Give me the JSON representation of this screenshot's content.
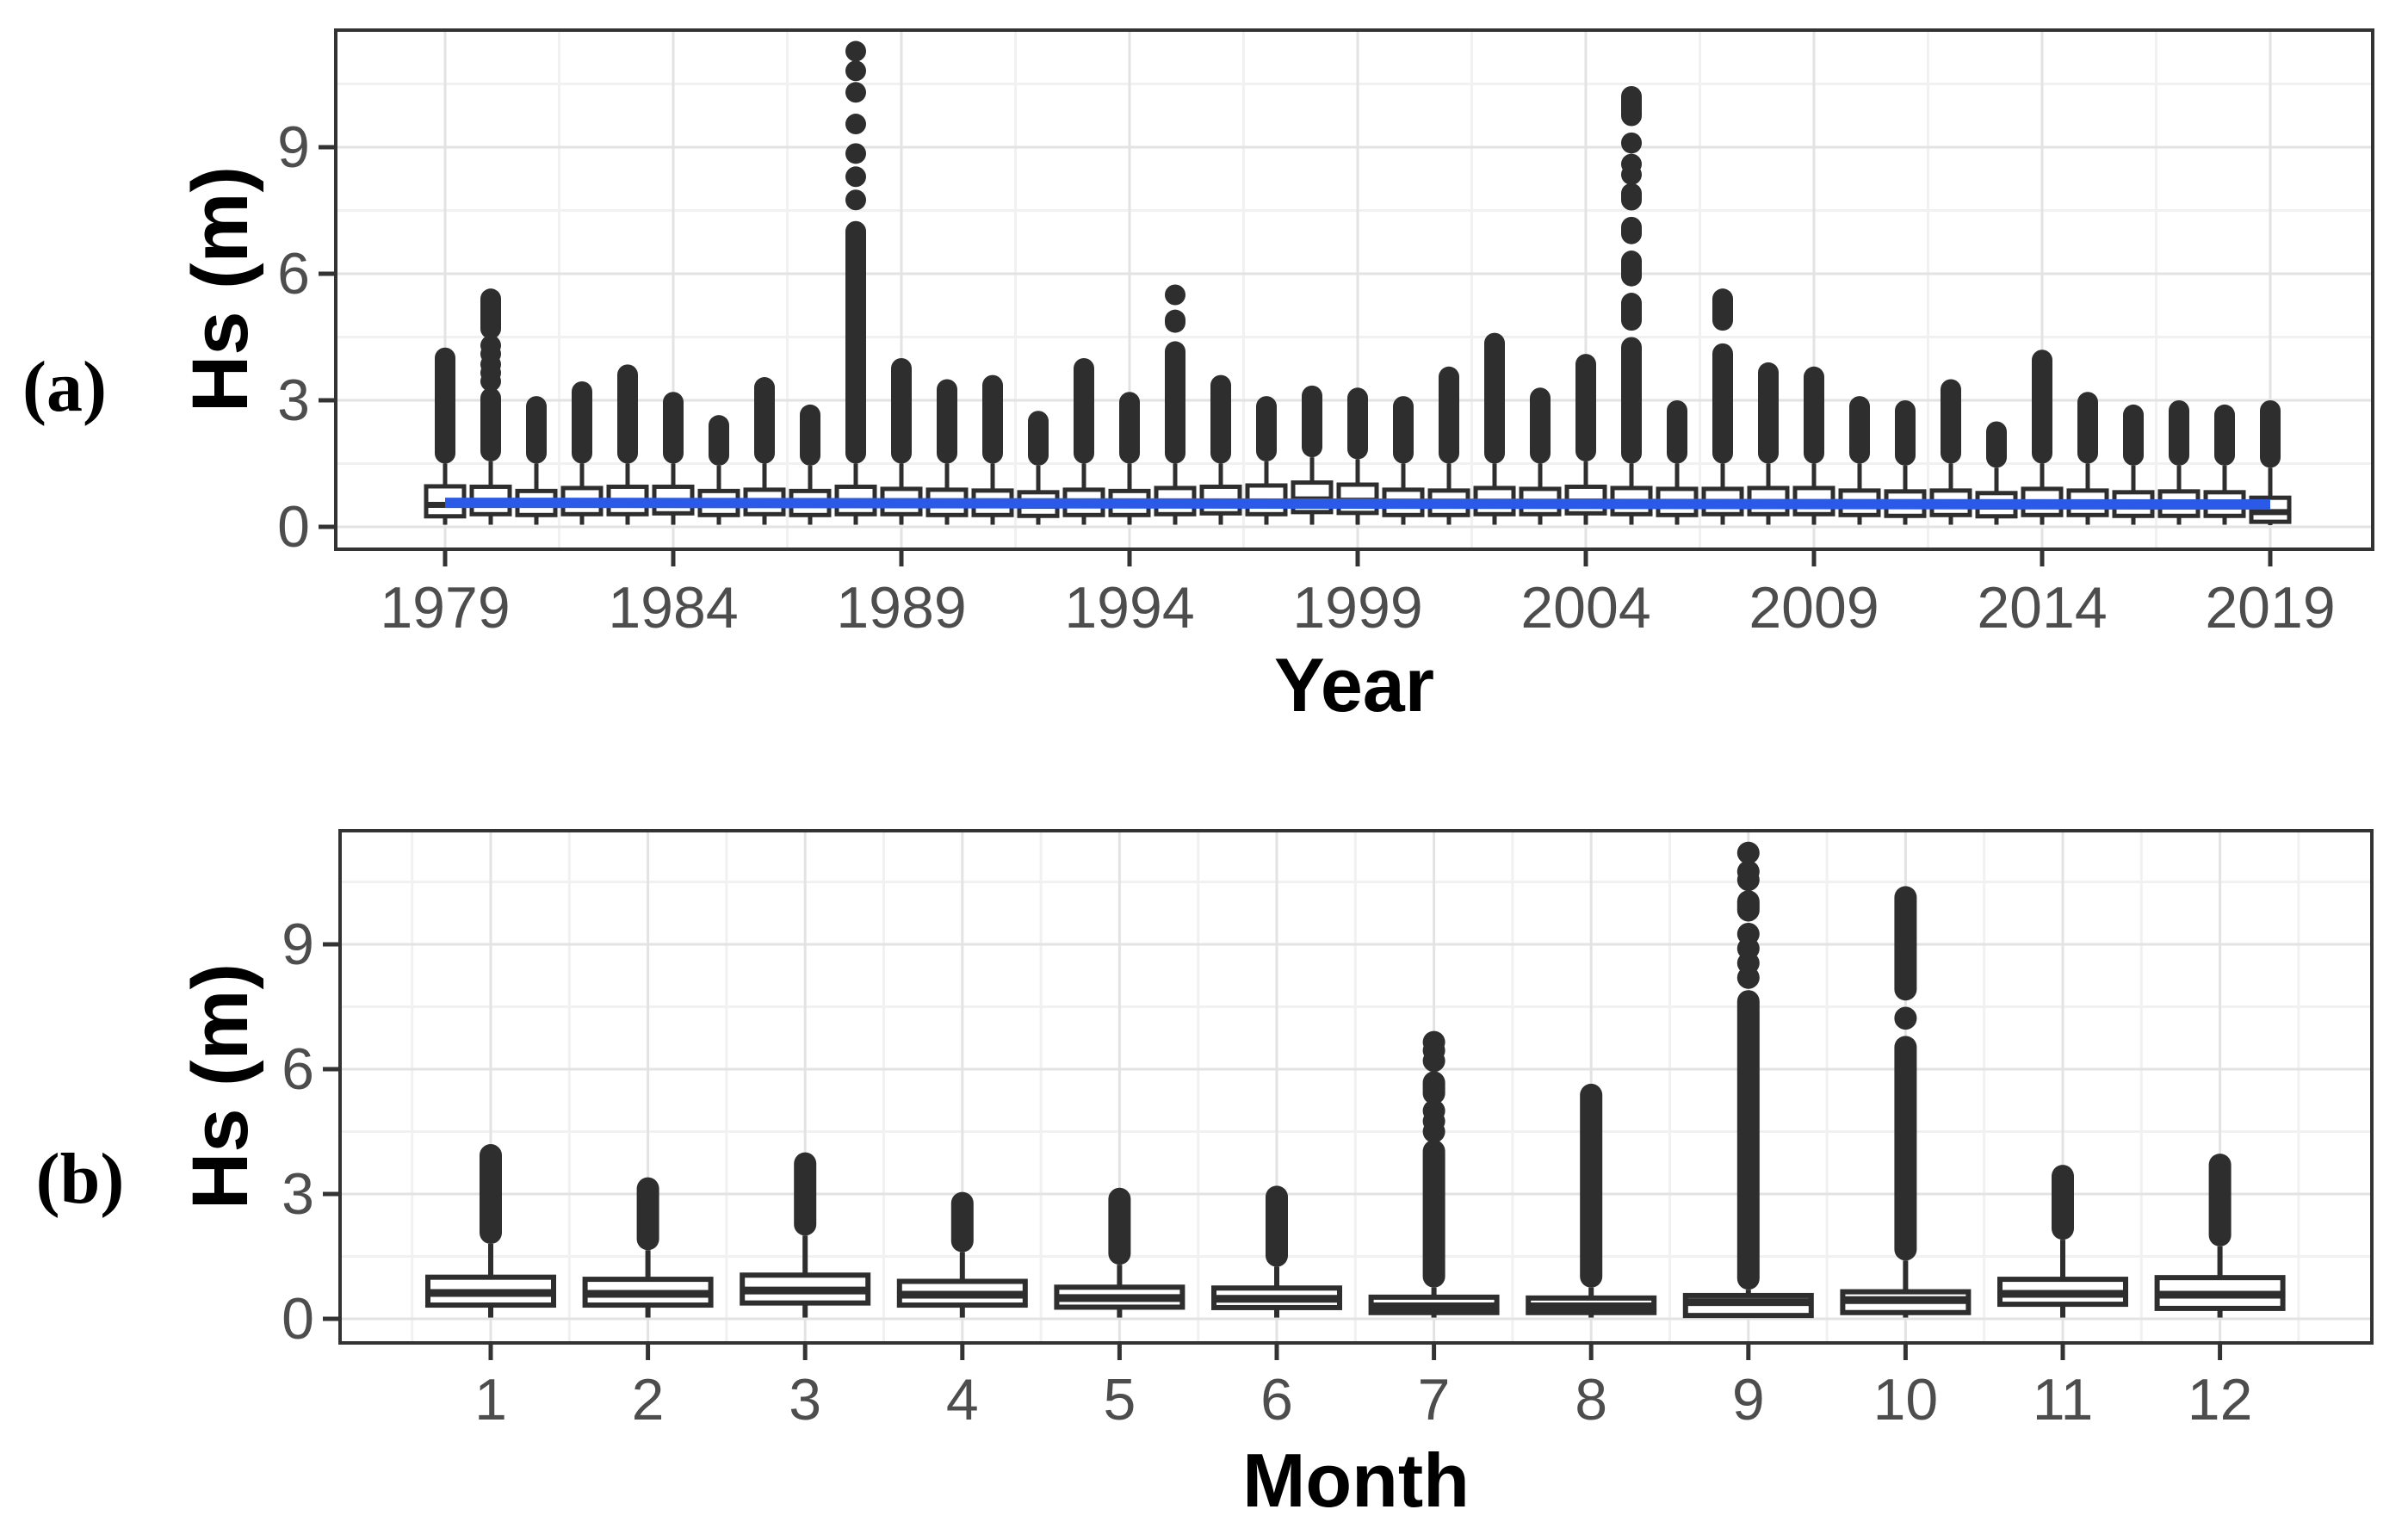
{
  "figure": {
    "background": "#ffffff"
  },
  "colors": {
    "box_stroke": "#2e2e2e",
    "box_fill": "#ffffff",
    "outlier": "#2e2e2e",
    "trend_blue": "#2b59e8",
    "grid_major": "#e3e3e3",
    "grid_minor": "#f1f1f1",
    "panel_border": "#333333",
    "tick_mark": "#333333",
    "tick_label": "#4d4d4d",
    "axis_title": "#000000"
  },
  "chart_data": [
    {
      "type": "boxplot",
      "panel_tag": "(a)",
      "xlabel": "Year",
      "ylabel": "Hs (m)",
      "x_ticks": [
        1979,
        1984,
        1989,
        1994,
        1999,
        2004,
        2009,
        2014,
        2019
      ],
      "y_ticks": [
        0,
        3,
        6,
        9
      ],
      "ylim": [
        -0.55,
        11.8
      ],
      "xlim": [
        1976.6,
        2021.3
      ],
      "grid": true,
      "legend": "none",
      "trend_line": {
        "x1": 1979,
        "v1": 0.57,
        "x2": 2019,
        "v2": 0.53,
        "color": "#2b59e8",
        "width": 12
      },
      "boxes": [
        {
          "x": 1979,
          "q1": 0.25,
          "med": 0.52,
          "q3": 0.96,
          "lo": 0.05,
          "seg": [
            [
              1.5,
              4.25
            ]
          ],
          "pts": []
        },
        {
          "x": 1980,
          "q1": 0.3,
          "med": 0.6,
          "q3": 0.95,
          "lo": 0.05,
          "seg": [
            [
              1.55,
              3.3
            ],
            [
              4.45,
              5.65
            ]
          ],
          "pts": [
            3.45,
            3.65,
            3.85,
            4.1,
            4.3
          ]
        },
        {
          "x": 1981,
          "q1": 0.28,
          "med": 0.52,
          "q3": 0.85,
          "lo": 0.05,
          "seg": [
            [
              1.5,
              3.1
            ]
          ],
          "pts": []
        },
        {
          "x": 1982,
          "q1": 0.3,
          "med": 0.58,
          "q3": 0.92,
          "lo": 0.05,
          "seg": [
            [
              1.5,
              3.45
            ]
          ],
          "pts": []
        },
        {
          "x": 1983,
          "q1": 0.3,
          "med": 0.6,
          "q3": 0.95,
          "lo": 0.05,
          "seg": [
            [
              1.5,
              3.85
            ]
          ],
          "pts": []
        },
        {
          "x": 1984,
          "q1": 0.32,
          "med": 0.6,
          "q3": 0.95,
          "lo": 0.05,
          "seg": [
            [
              1.5,
              3.2
            ]
          ],
          "pts": []
        },
        {
          "x": 1985,
          "q1": 0.28,
          "med": 0.52,
          "q3": 0.85,
          "lo": 0.05,
          "seg": [
            [
              1.45,
              2.65
            ]
          ],
          "pts": []
        },
        {
          "x": 1986,
          "q1": 0.3,
          "med": 0.55,
          "q3": 0.88,
          "lo": 0.05,
          "seg": [
            [
              1.5,
              3.55
            ]
          ],
          "pts": []
        },
        {
          "x": 1987,
          "q1": 0.28,
          "med": 0.52,
          "q3": 0.85,
          "lo": 0.05,
          "seg": [
            [
              1.45,
              2.9
            ]
          ],
          "pts": []
        },
        {
          "x": 1988,
          "q1": 0.3,
          "med": 0.58,
          "q3": 0.95,
          "lo": 0.05,
          "seg": [
            [
              1.5,
              7.25
            ],
            [
              10.1,
              10.5
            ],
            [
              10.62,
              11.0
            ],
            [
              11.1,
              11.45
            ]
          ],
          "pts": [
            7.75,
            8.3,
            8.85,
            9.55
          ]
        },
        {
          "x": 1989,
          "q1": 0.3,
          "med": 0.55,
          "q3": 0.9,
          "lo": 0.05,
          "seg": [
            [
              1.5,
              4.0
            ]
          ],
          "pts": []
        },
        {
          "x": 1990,
          "q1": 0.28,
          "med": 0.55,
          "q3": 0.88,
          "lo": 0.05,
          "seg": [
            [
              1.5,
              3.5
            ]
          ],
          "pts": []
        },
        {
          "x": 1991,
          "q1": 0.28,
          "med": 0.52,
          "q3": 0.86,
          "lo": 0.05,
          "seg": [
            [
              1.5,
              3.6
            ]
          ],
          "pts": []
        },
        {
          "x": 1992,
          "q1": 0.26,
          "med": 0.5,
          "q3": 0.82,
          "lo": 0.05,
          "seg": [
            [
              1.45,
              2.75
            ]
          ],
          "pts": []
        },
        {
          "x": 1993,
          "q1": 0.28,
          "med": 0.55,
          "q3": 0.88,
          "lo": 0.05,
          "seg": [
            [
              1.5,
              4.0
            ]
          ],
          "pts": []
        },
        {
          "x": 1994,
          "q1": 0.28,
          "med": 0.52,
          "q3": 0.85,
          "lo": 0.05,
          "seg": [
            [
              1.5,
              3.2
            ]
          ],
          "pts": []
        },
        {
          "x": 1995,
          "q1": 0.3,
          "med": 0.58,
          "q3": 0.92,
          "lo": 0.05,
          "seg": [
            [
              1.5,
              4.4
            ],
            [
              4.6,
              5.15
            ],
            [
              5.3,
              5.7
            ]
          ],
          "pts": []
        },
        {
          "x": 1996,
          "q1": 0.32,
          "med": 0.6,
          "q3": 0.95,
          "lo": 0.05,
          "seg": [
            [
              1.5,
              3.6
            ]
          ],
          "pts": []
        },
        {
          "x": 1997,
          "q1": 0.3,
          "med": 0.58,
          "q3": 0.98,
          "lo": 0.05,
          "seg": [
            [
              1.55,
              3.1
            ]
          ],
          "pts": []
        },
        {
          "x": 1998,
          "q1": 0.35,
          "med": 0.65,
          "q3": 1.05,
          "lo": 0.05,
          "seg": [
            [
              1.65,
              3.35
            ]
          ],
          "pts": []
        },
        {
          "x": 1999,
          "q1": 0.33,
          "med": 0.62,
          "q3": 1.0,
          "lo": 0.05,
          "seg": [
            [
              1.6,
              3.3
            ]
          ],
          "pts": []
        },
        {
          "x": 2000,
          "q1": 0.28,
          "med": 0.55,
          "q3": 0.88,
          "lo": 0.05,
          "seg": [
            [
              1.5,
              3.1
            ]
          ],
          "pts": []
        },
        {
          "x": 2001,
          "q1": 0.28,
          "med": 0.52,
          "q3": 0.86,
          "lo": 0.05,
          "seg": [
            [
              1.5,
              3.8
            ]
          ],
          "pts": []
        },
        {
          "x": 2002,
          "q1": 0.3,
          "med": 0.58,
          "q3": 0.92,
          "lo": 0.05,
          "seg": [
            [
              1.5,
              4.6
            ]
          ],
          "pts": []
        },
        {
          "x": 2003,
          "q1": 0.3,
          "med": 0.55,
          "q3": 0.9,
          "lo": 0.05,
          "seg": [
            [
              1.5,
              3.3
            ]
          ],
          "pts": []
        },
        {
          "x": 2004,
          "q1": 0.32,
          "med": 0.6,
          "q3": 0.95,
          "lo": 0.05,
          "seg": [
            [
              1.55,
              4.1
            ]
          ],
          "pts": []
        },
        {
          "x": 2005,
          "q1": 0.3,
          "med": 0.58,
          "q3": 0.92,
          "lo": 0.05,
          "seg": [
            [
              1.5,
              4.5
            ],
            [
              4.65,
              5.55
            ],
            [
              5.7,
              6.55
            ],
            [
              6.7,
              7.35
            ],
            [
              7.5,
              8.15
            ],
            [
              8.85,
              9.35
            ],
            [
              9.5,
              10.45
            ]
          ],
          "pts": [
            8.35,
            8.6
          ]
        },
        {
          "x": 2006,
          "q1": 0.28,
          "med": 0.55,
          "q3": 0.9,
          "lo": 0.05,
          "seg": [
            [
              1.5,
              3.0
            ]
          ],
          "pts": []
        },
        {
          "x": 2007,
          "q1": 0.3,
          "med": 0.55,
          "q3": 0.9,
          "lo": 0.05,
          "seg": [
            [
              1.5,
              4.35
            ],
            [
              4.65,
              5.65
            ]
          ],
          "pts": []
        },
        {
          "x": 2008,
          "q1": 0.3,
          "med": 0.55,
          "q3": 0.92,
          "lo": 0.05,
          "seg": [
            [
              1.5,
              3.9
            ]
          ],
          "pts": []
        },
        {
          "x": 2009,
          "q1": 0.3,
          "med": 0.58,
          "q3": 0.92,
          "lo": 0.05,
          "seg": [
            [
              1.5,
              3.8
            ]
          ],
          "pts": []
        },
        {
          "x": 2010,
          "q1": 0.28,
          "med": 0.52,
          "q3": 0.86,
          "lo": 0.05,
          "seg": [
            [
              1.5,
              3.1
            ]
          ],
          "pts": []
        },
        {
          "x": 2011,
          "q1": 0.26,
          "med": 0.5,
          "q3": 0.84,
          "lo": 0.05,
          "seg": [
            [
              1.45,
              3.0
            ]
          ],
          "pts": []
        },
        {
          "x": 2012,
          "q1": 0.28,
          "med": 0.52,
          "q3": 0.86,
          "lo": 0.05,
          "seg": [
            [
              1.5,
              3.5
            ]
          ],
          "pts": []
        },
        {
          "x": 2013,
          "q1": 0.25,
          "med": 0.48,
          "q3": 0.8,
          "lo": 0.05,
          "seg": [
            [
              1.4,
              2.5
            ]
          ],
          "pts": []
        },
        {
          "x": 2014,
          "q1": 0.28,
          "med": 0.55,
          "q3": 0.9,
          "lo": 0.05,
          "seg": [
            [
              1.5,
              4.2
            ]
          ],
          "pts": []
        },
        {
          "x": 2015,
          "q1": 0.28,
          "med": 0.52,
          "q3": 0.86,
          "lo": 0.05,
          "seg": [
            [
              1.5,
              3.2
            ]
          ],
          "pts": []
        },
        {
          "x": 2016,
          "q1": 0.26,
          "med": 0.5,
          "q3": 0.82,
          "lo": 0.05,
          "seg": [
            [
              1.45,
              2.9
            ]
          ],
          "pts": []
        },
        {
          "x": 2017,
          "q1": 0.26,
          "med": 0.5,
          "q3": 0.84,
          "lo": 0.05,
          "seg": [
            [
              1.45,
              3.0
            ]
          ],
          "pts": []
        },
        {
          "x": 2018,
          "q1": 0.26,
          "med": 0.5,
          "q3": 0.82,
          "lo": 0.05,
          "seg": [
            [
              1.45,
              2.9
            ]
          ],
          "pts": []
        },
        {
          "x": 2019,
          "q1": 0.12,
          "med": 0.35,
          "q3": 0.69,
          "lo": 0.04,
          "seg": [
            [
              1.4,
              3.0
            ]
          ],
          "pts": []
        }
      ]
    },
    {
      "type": "boxplot",
      "panel_tag": "(b)",
      "xlabel": "Month",
      "ylabel": "Hs (m)",
      "x_ticks": [
        1,
        2,
        3,
        4,
        5,
        6,
        7,
        8,
        9,
        10,
        11,
        12
      ],
      "y_ticks": [
        0,
        3,
        6,
        9
      ],
      "ylim": [
        -0.58,
        11.74
      ],
      "xlim": [
        0.4,
        12.6
      ],
      "grid": true,
      "legend": "none",
      "trend_line": null,
      "boxes": [
        {
          "x": 1,
          "q1": 0.33,
          "med": 0.62,
          "q3": 1.0,
          "lo": 0.03,
          "seg": [
            [
              1.8,
              4.2
            ]
          ],
          "pts": []
        },
        {
          "x": 2,
          "q1": 0.33,
          "med": 0.6,
          "q3": 0.95,
          "lo": 0.03,
          "seg": [
            [
              1.65,
              3.4
            ]
          ],
          "pts": []
        },
        {
          "x": 3,
          "q1": 0.38,
          "med": 0.68,
          "q3": 1.05,
          "lo": 0.03,
          "seg": [
            [
              2.0,
              4.0
            ]
          ],
          "pts": []
        },
        {
          "x": 4,
          "q1": 0.33,
          "med": 0.58,
          "q3": 0.9,
          "lo": 0.03,
          "seg": [
            [
              1.6,
              3.05
            ]
          ],
          "pts": []
        },
        {
          "x": 5,
          "q1": 0.28,
          "med": 0.5,
          "q3": 0.76,
          "lo": 0.03,
          "seg": [
            [
              1.3,
              3.15
            ]
          ],
          "pts": []
        },
        {
          "x": 6,
          "q1": 0.27,
          "med": 0.48,
          "q3": 0.74,
          "lo": 0.03,
          "seg": [
            [
              1.25,
              3.2
            ]
          ],
          "pts": []
        },
        {
          "x": 7,
          "q1": 0.15,
          "med": 0.3,
          "q3": 0.52,
          "lo": 0.03,
          "seg": [
            [
              0.75,
              4.3
            ],
            [
              5.15,
              5.95
            ]
          ],
          "pts": [
            4.5,
            4.75,
            5.0,
            6.2,
            6.45,
            6.65
          ]
        },
        {
          "x": 8,
          "q1": 0.15,
          "med": 0.3,
          "q3": 0.5,
          "lo": 0.03,
          "seg": [
            [
              0.75,
              5.65
            ]
          ],
          "pts": []
        },
        {
          "x": 9,
          "q1": 0.08,
          "med": 0.4,
          "q3": 0.56,
          "lo": 0.03,
          "seg": [
            [
              0.7,
              7.9
            ],
            [
              9.55,
              10.3
            ],
            [
              10.95,
              11.45
            ]
          ],
          "pts": [
            8.2,
            8.55,
            8.9,
            9.25,
            10.55,
            10.75
          ]
        },
        {
          "x": 10,
          "q1": 0.15,
          "med": 0.45,
          "q3": 0.65,
          "lo": 0.03,
          "seg": [
            [
              1.4,
              6.8
            ],
            [
              6.95,
              7.5
            ],
            [
              7.65,
              10.4
            ]
          ],
          "pts": []
        },
        {
          "x": 11,
          "q1": 0.35,
          "med": 0.6,
          "q3": 0.95,
          "lo": 0.03,
          "seg": [
            [
              1.9,
              3.7
            ]
          ],
          "pts": []
        },
        {
          "x": 12,
          "q1": 0.25,
          "med": 0.58,
          "q3": 0.99,
          "lo": 0.03,
          "seg": [
            [
              1.74,
              3.97
            ]
          ],
          "pts": []
        }
      ]
    }
  ]
}
